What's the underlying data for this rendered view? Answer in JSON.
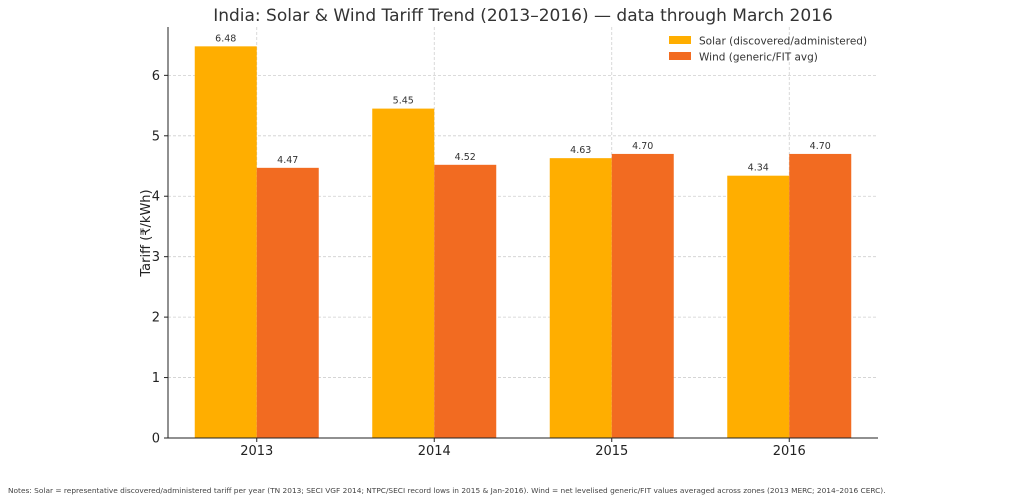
{
  "chart_data": {
    "type": "bar",
    "title": "India: Solar & Wind Tariff Trend (2013–2016) — data through March 2016",
    "xlabel": "",
    "ylabel": "Tariff (₹/kWh)",
    "categories": [
      "2013",
      "2014",
      "2015",
      "2016"
    ],
    "series": [
      {
        "name": "Solar (discovered/administered)",
        "color": "#FFAE00",
        "values": [
          6.48,
          5.45,
          4.63,
          4.34
        ],
        "labels": [
          "6.48",
          "5.45",
          "4.63",
          "4.34"
        ]
      },
      {
        "name": "Wind (generic/FIT avg)",
        "color": "#F26B21",
        "values": [
          4.47,
          4.52,
          4.7,
          4.7
        ],
        "labels": [
          "4.47",
          "4.52",
          "4.70",
          "4.70"
        ]
      }
    ],
    "ylim": [
      0,
      6.8
    ],
    "yticks": [
      0,
      1,
      2,
      3,
      4,
      5,
      6
    ],
    "grid": true,
    "legend_position": "top-right"
  },
  "notes": "Notes: Solar = representative discovered/administered tariff per year (TN 2013; SECI VGF 2014; NTPC/SECI record lows in 2015 & Jan-2016). Wind = net levelised generic/FIT values averaged across zones (2013 MERC; 2014–2016 CERC)."
}
